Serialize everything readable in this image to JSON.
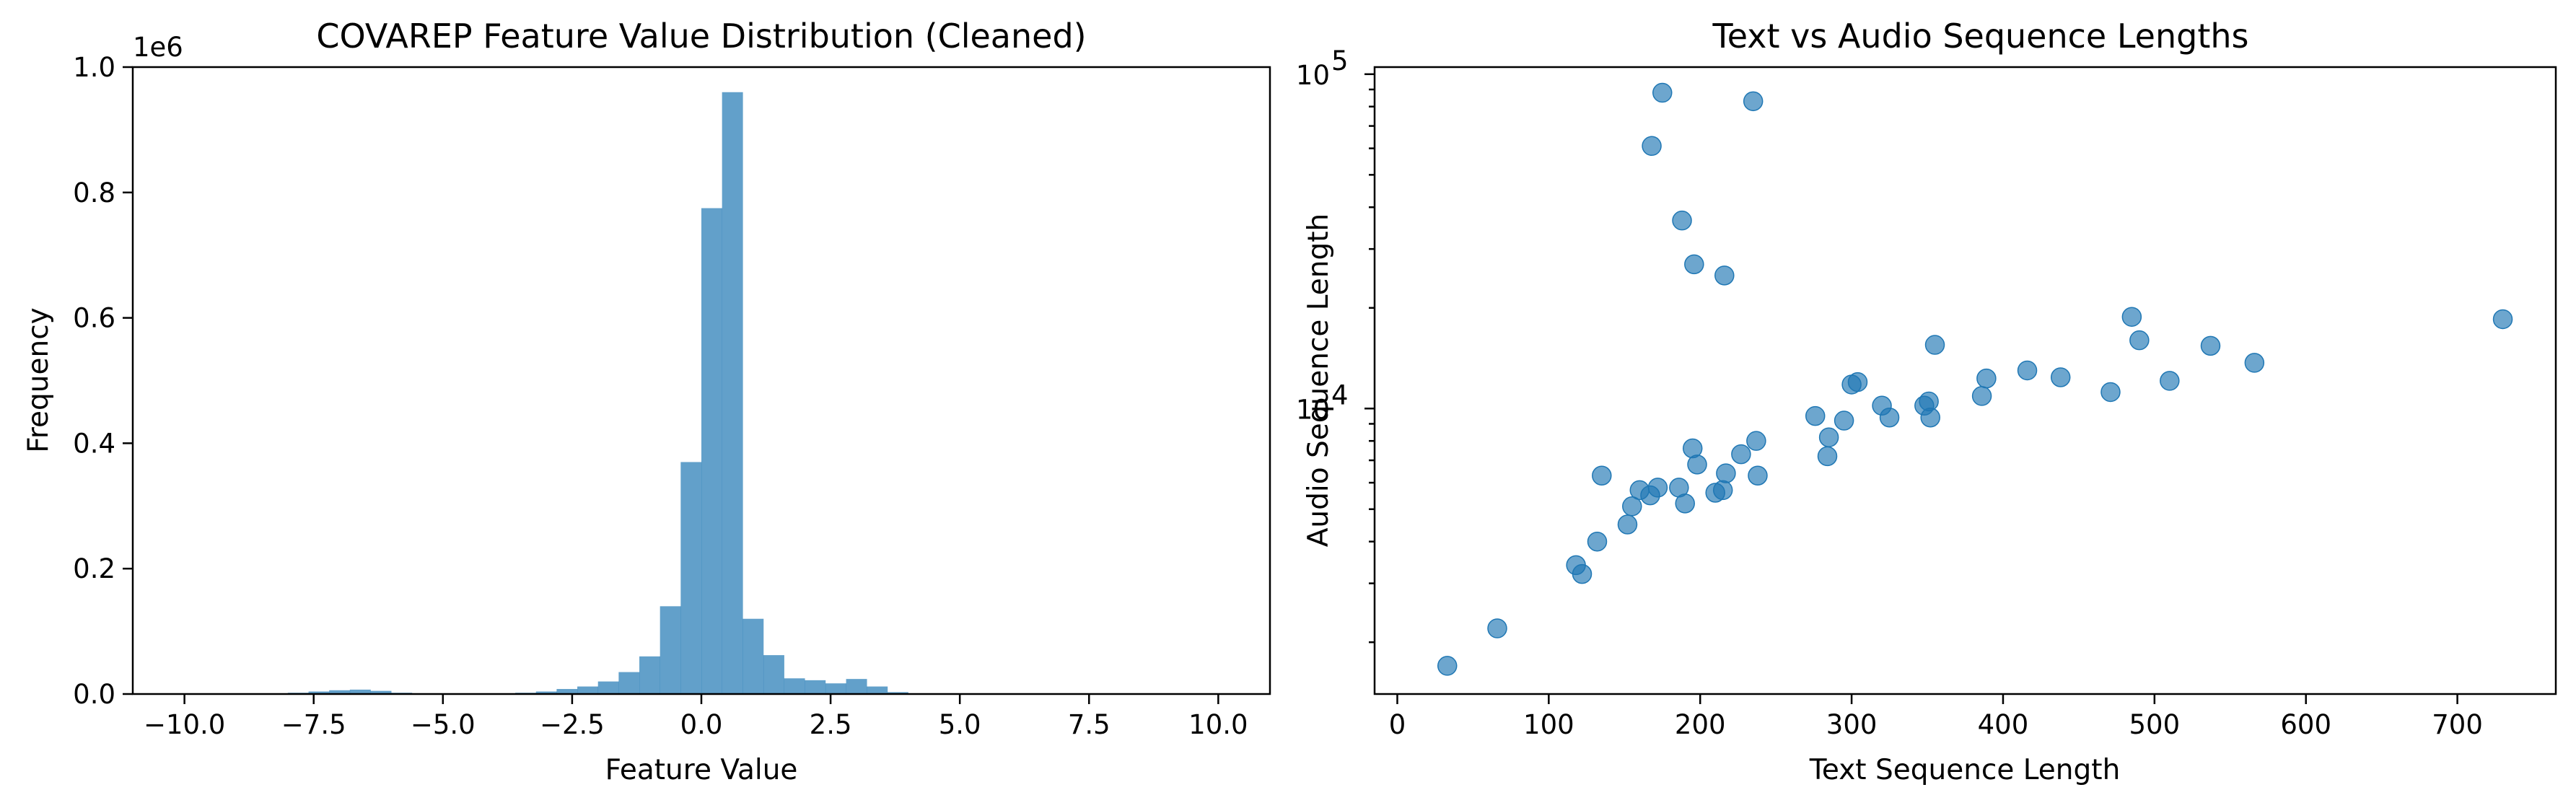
{
  "chart_data": [
    {
      "type": "bar",
      "title": "COVAREP Feature Value Distribution (Cleaned)",
      "xlabel": "Feature Value",
      "ylabel": "Frequency",
      "y_offset_label": "1e6",
      "xlim": [
        -11,
        11
      ],
      "ylim": [
        0,
        1.0
      ],
      "xticks": [
        -10,
        -7.5,
        -5,
        -2.5,
        0,
        2.5,
        5,
        7.5,
        10
      ],
      "xtick_labels": [
        "−10.0",
        "−7.5",
        "−5.0",
        "−2.5",
        "0.0",
        "2.5",
        "5.0",
        "7.5",
        "10.0"
      ],
      "yticks": [
        0,
        0.2,
        0.4,
        0.6,
        0.8,
        1.0
      ],
      "ytick_labels": [
        "0.0",
        "0.2",
        "0.4",
        "0.6",
        "0.8",
        "1.0"
      ],
      "bin_edges": [
        -10.0,
        -9.6,
        -9.2,
        -8.8,
        -8.4,
        -8.0,
        -7.6,
        -7.2,
        -6.8,
        -6.4,
        -6.0,
        -5.6,
        -5.2,
        -4.8,
        -4.4,
        -4.0,
        -3.6,
        -3.2,
        -2.8,
        -2.4,
        -2.0,
        -1.6,
        -1.2,
        -0.8,
        -0.4,
        0.0,
        0.4,
        0.8,
        1.2,
        1.6,
        2.0,
        2.4,
        2.8,
        3.2,
        3.6,
        4.0,
        4.4,
        4.8,
        5.2,
        5.6,
        6.0,
        6.4,
        6.8,
        7.2,
        7.6,
        8.0,
        8.4,
        8.8,
        9.2,
        9.6,
        10.0
      ],
      "values": [
        0.0005,
        0.0005,
        0.001,
        0.001,
        0.001,
        0.002,
        0.004,
        0.006,
        0.007,
        0.005,
        0.002,
        0.001,
        0.001,
        0.001,
        0.001,
        0.001,
        0.002,
        0.004,
        0.008,
        0.012,
        0.02,
        0.035,
        0.06,
        0.14,
        0.37,
        0.775,
        0.96,
        0.12,
        0.062,
        0.025,
        0.022,
        0.017,
        0.024,
        0.012,
        0.003,
        0.001,
        0.001,
        0.0008,
        0.0008,
        0.0006,
        0.0005,
        0.0005,
        0.0005,
        0.0004,
        0.0004,
        0.0004,
        0.0003,
        0.0003,
        0.0003,
        0.0003
      ],
      "color": "#1f77b4"
    },
    {
      "type": "scatter",
      "title": "Text vs Audio Sequence Lengths",
      "xlabel": "Text Sequence Length",
      "ylabel": "Audio Sequence Length",
      "y_scale": "log",
      "xlim": [
        -15,
        765
      ],
      "ylim": [
        1400,
        105000
      ],
      "xticks": [
        0,
        100,
        200,
        300,
        400,
        500,
        600,
        700
      ],
      "xtick_labels": [
        "0",
        "100",
        "200",
        "300",
        "400",
        "500",
        "600",
        "700"
      ],
      "ytick_major": [
        {
          "value": 10000,
          "base": "10",
          "exp": "4"
        },
        {
          "value": 100000,
          "base": "10",
          "exp": "5"
        }
      ],
      "ytick_minor": [
        2000,
        3000,
        4000,
        5000,
        6000,
        7000,
        8000,
        9000,
        20000,
        30000,
        40000,
        50000,
        60000,
        70000,
        80000,
        90000
      ],
      "points": [
        [
          33,
          1700
        ],
        [
          66,
          2200
        ],
        [
          118,
          3400
        ],
        [
          122,
          3200
        ],
        [
          132,
          4000
        ],
        [
          135,
          6300
        ],
        [
          152,
          4500
        ],
        [
          155,
          5100
        ],
        [
          160,
          5700
        ],
        [
          167,
          5500
        ],
        [
          168,
          61000
        ],
        [
          172,
          5800
        ],
        [
          175,
          88000
        ],
        [
          186,
          5800
        ],
        [
          188,
          36500
        ],
        [
          190,
          5200
        ],
        [
          195,
          7600
        ],
        [
          196,
          27000
        ],
        [
          198,
          6800
        ],
        [
          210,
          5600
        ],
        [
          215,
          5700
        ],
        [
          216,
          25000
        ],
        [
          217,
          6400
        ],
        [
          227,
          7300
        ],
        [
          235,
          83000
        ],
        [
          237,
          8000
        ],
        [
          238,
          6300
        ],
        [
          276,
          9500
        ],
        [
          284,
          7200
        ],
        [
          285,
          8200
        ],
        [
          295,
          9200
        ],
        [
          300,
          11800
        ],
        [
          304,
          12000
        ],
        [
          320,
          10200
        ],
        [
          325,
          9400
        ],
        [
          348,
          10200
        ],
        [
          351,
          10500
        ],
        [
          352,
          9400
        ],
        [
          355,
          15500
        ],
        [
          386,
          10900
        ],
        [
          389,
          12300
        ],
        [
          416,
          13000
        ],
        [
          438,
          12400
        ],
        [
          471,
          11200
        ],
        [
          485,
          18800
        ],
        [
          490,
          16000
        ],
        [
          510,
          12100
        ],
        [
          537,
          15400
        ],
        [
          566,
          13700
        ],
        [
          730,
          18500
        ]
      ],
      "color": "#1f77b4"
    }
  ]
}
